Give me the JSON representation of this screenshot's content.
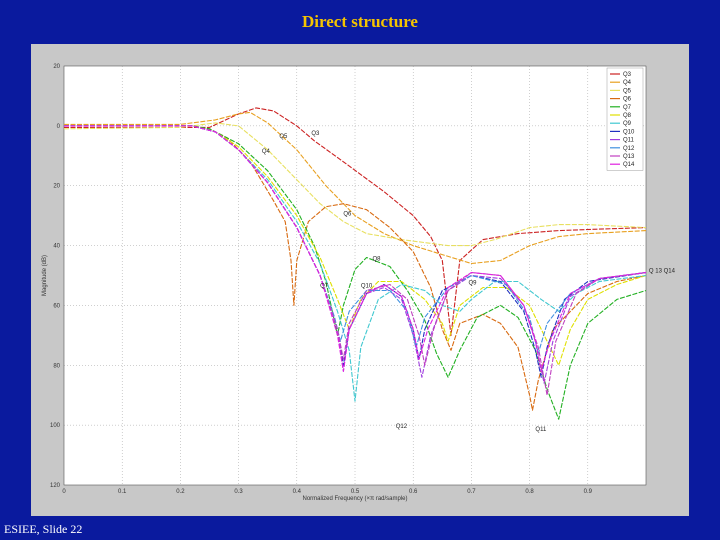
{
  "slide": {
    "title": "Direct structure",
    "footer": "ESIEE, Slide 22"
  },
  "chart_data": {
    "type": "line",
    "title": "",
    "xlabel": "Normalized Frequency (×π rad/sample)",
    "ylabel": "Magnitude (dB)",
    "xlim": [
      0,
      1
    ],
    "ylim_display": [
      20,
      -120
    ],
    "x_ticks": [
      0,
      0.1,
      0.2,
      0.3,
      0.4,
      0.5,
      0.6,
      0.7,
      0.8,
      0.9
    ],
    "x_tick_labels": [
      "0",
      "0.1",
      "0.2",
      "0.3",
      "0.4",
      "0.5",
      "0.6",
      "0.7",
      "0.8",
      "0.9"
    ],
    "y_ticks": [
      20,
      0,
      -20,
      -40,
      -60,
      -80,
      -100,
      -120
    ],
    "y_tick_labels": [
      "20",
      "0",
      "20",
      "40",
      "60",
      "80",
      "100",
      "120"
    ],
    "grid": true,
    "legend_position": "top-right",
    "series": [
      {
        "name": "Q3",
        "color": "#cc2222",
        "points": [
          [
            0,
            -0.5
          ],
          [
            0.25,
            -0.5
          ],
          [
            0.3,
            4
          ],
          [
            0.33,
            6
          ],
          [
            0.36,
            5
          ],
          [
            0.4,
            0
          ],
          [
            0.43,
            -5
          ],
          [
            0.48,
            -12
          ],
          [
            0.55,
            -22
          ],
          [
            0.6,
            -30
          ],
          [
            0.63,
            -37
          ],
          [
            0.65,
            -45
          ],
          [
            0.665,
            -70
          ],
          [
            0.68,
            -45
          ],
          [
            0.72,
            -38
          ],
          [
            0.78,
            -36
          ],
          [
            0.85,
            -35
          ],
          [
            0.92,
            -34.5
          ],
          [
            1,
            -34
          ]
        ]
      },
      {
        "name": "Q4",
        "color": "#e8a020",
        "points": [
          [
            0,
            0.5
          ],
          [
            0.2,
            0.5
          ],
          [
            0.26,
            2
          ],
          [
            0.3,
            4
          ],
          [
            0.32,
            4.5
          ],
          [
            0.35,
            1
          ],
          [
            0.4,
            -8
          ],
          [
            0.45,
            -20
          ],
          [
            0.5,
            -30
          ],
          [
            0.55,
            -36
          ],
          [
            0.6,
            -40
          ],
          [
            0.65,
            -43
          ],
          [
            0.7,
            -46
          ],
          [
            0.75,
            -45
          ],
          [
            0.8,
            -40
          ],
          [
            0.85,
            -37
          ],
          [
            0.9,
            -36
          ],
          [
            1,
            -35
          ]
        ]
      },
      {
        "name": "Q5",
        "color": "#e8e060",
        "points": [
          [
            0,
            -1
          ],
          [
            0.2,
            -0.5
          ],
          [
            0.26,
            1
          ],
          [
            0.3,
            0
          ],
          [
            0.35,
            -8
          ],
          [
            0.4,
            -18
          ],
          [
            0.44,
            -26
          ],
          [
            0.48,
            -32
          ],
          [
            0.52,
            -36
          ],
          [
            0.58,
            -38
          ],
          [
            0.62,
            -39
          ],
          [
            0.66,
            -40
          ],
          [
            0.7,
            -40
          ],
          [
            0.74,
            -38
          ],
          [
            0.8,
            -34
          ],
          [
            0.85,
            -33
          ],
          [
            0.9,
            -33
          ],
          [
            1,
            -34
          ]
        ]
      },
      {
        "name": "Q6",
        "color": "#d86a10",
        "points": [
          [
            0,
            0
          ],
          [
            0.22,
            0
          ],
          [
            0.25,
            -1
          ],
          [
            0.28,
            -4
          ],
          [
            0.32,
            -12
          ],
          [
            0.36,
            -25
          ],
          [
            0.38,
            -32
          ],
          [
            0.39,
            -45
          ],
          [
            0.395,
            -60
          ],
          [
            0.4,
            -45
          ],
          [
            0.42,
            -32
          ],
          [
            0.45,
            -27
          ],
          [
            0.48,
            -26
          ],
          [
            0.52,
            -28
          ],
          [
            0.56,
            -34
          ],
          [
            0.6,
            -42
          ],
          [
            0.63,
            -54
          ],
          [
            0.65,
            -68
          ],
          [
            0.665,
            -75
          ],
          [
            0.68,
            -66
          ],
          [
            0.72,
            -63
          ],
          [
            0.75,
            -66
          ],
          [
            0.78,
            -74
          ],
          [
            0.8,
            -90
          ],
          [
            0.805,
            -95
          ],
          [
            0.815,
            -85
          ],
          [
            0.84,
            -68
          ],
          [
            0.9,
            -56
          ],
          [
            0.95,
            -52
          ],
          [
            1,
            -50
          ]
        ]
      },
      {
        "name": "Q7",
        "color": "#22b022",
        "points": [
          [
            0,
            0
          ],
          [
            0.22,
            0
          ],
          [
            0.25,
            -1
          ],
          [
            0.3,
            -6
          ],
          [
            0.35,
            -15
          ],
          [
            0.4,
            -28
          ],
          [
            0.43,
            -40
          ],
          [
            0.45,
            -52
          ],
          [
            0.47,
            -70
          ],
          [
            0.48,
            -60
          ],
          [
            0.5,
            -48
          ],
          [
            0.52,
            -44
          ],
          [
            0.56,
            -47
          ],
          [
            0.59,
            -55
          ],
          [
            0.62,
            -65
          ],
          [
            0.64,
            -76
          ],
          [
            0.66,
            -84
          ],
          [
            0.68,
            -75
          ],
          [
            0.71,
            -64
          ],
          [
            0.75,
            -60
          ],
          [
            0.78,
            -64
          ],
          [
            0.81,
            -75
          ],
          [
            0.83,
            -88
          ],
          [
            0.85,
            -98
          ],
          [
            0.87,
            -80
          ],
          [
            0.9,
            -66
          ],
          [
            0.95,
            -58
          ],
          [
            1,
            -55
          ]
        ]
      },
      {
        "name": "Q8",
        "color": "#e0e000",
        "points": [
          [
            0,
            0
          ],
          [
            0.22,
            0
          ],
          [
            0.26,
            -2
          ],
          [
            0.3,
            -7
          ],
          [
            0.35,
            -17
          ],
          [
            0.4,
            -30
          ],
          [
            0.44,
            -44
          ],
          [
            0.47,
            -58
          ],
          [
            0.49,
            -68
          ],
          [
            0.51,
            -58
          ],
          [
            0.54,
            -52
          ],
          [
            0.58,
            -52
          ],
          [
            0.62,
            -58
          ],
          [
            0.65,
            -66
          ],
          [
            0.66,
            -72
          ],
          [
            0.68,
            -60
          ],
          [
            0.72,
            -54
          ],
          [
            0.76,
            -54
          ],
          [
            0.8,
            -60
          ],
          [
            0.83,
            -72
          ],
          [
            0.85,
            -80
          ],
          [
            0.87,
            -68
          ],
          [
            0.9,
            -58
          ],
          [
            0.95,
            -53
          ],
          [
            1,
            -50
          ]
        ]
      },
      {
        "name": "Q9",
        "color": "#40c8d0",
        "points": [
          [
            0,
            0
          ],
          [
            0.22,
            0
          ],
          [
            0.26,
            -2
          ],
          [
            0.3,
            -8
          ],
          [
            0.35,
            -18
          ],
          [
            0.4,
            -32
          ],
          [
            0.44,
            -46
          ],
          [
            0.47,
            -62
          ],
          [
            0.49,
            -75
          ],
          [
            0.5,
            -92
          ],
          [
            0.51,
            -74
          ],
          [
            0.54,
            -58
          ],
          [
            0.58,
            -53
          ],
          [
            0.62,
            -55
          ],
          [
            0.65,
            -60
          ],
          [
            0.68,
            -62
          ],
          [
            0.7,
            -58
          ],
          [
            0.74,
            -52
          ],
          [
            0.78,
            -52
          ],
          [
            0.82,
            -58
          ],
          [
            0.85,
            -62
          ],
          [
            0.88,
            -56
          ],
          [
            0.92,
            -52
          ],
          [
            1,
            -50
          ]
        ]
      },
      {
        "name": "Q10",
        "color": "#2030c0",
        "points": [
          [
            0,
            0
          ],
          [
            0.22,
            0
          ],
          [
            0.26,
            -2
          ],
          [
            0.3,
            -8
          ],
          [
            0.35,
            -19
          ],
          [
            0.4,
            -34
          ],
          [
            0.44,
            -50
          ],
          [
            0.47,
            -68
          ],
          [
            0.48,
            -80
          ],
          [
            0.49,
            -68
          ],
          [
            0.52,
            -56
          ],
          [
            0.55,
            -53
          ],
          [
            0.58,
            -57
          ],
          [
            0.6,
            -68
          ],
          [
            0.61,
            -78
          ],
          [
            0.62,
            -68
          ],
          [
            0.65,
            -55
          ],
          [
            0.7,
            -50
          ],
          [
            0.75,
            -52
          ],
          [
            0.79,
            -62
          ],
          [
            0.81,
            -75
          ],
          [
            0.82,
            -84
          ],
          [
            0.83,
            -74
          ],
          [
            0.86,
            -58
          ],
          [
            0.9,
            -52
          ],
          [
            1,
            -49
          ]
        ]
      },
      {
        "name": "Q11",
        "color": "#a040e0",
        "points": [
          [
            0,
            0
          ],
          [
            0.22,
            0
          ],
          [
            0.26,
            -2
          ],
          [
            0.3,
            -8
          ],
          [
            0.35,
            -19
          ],
          [
            0.4,
            -34
          ],
          [
            0.44,
            -50
          ],
          [
            0.47,
            -68
          ],
          [
            0.48,
            -82
          ],
          [
            0.49,
            -68
          ],
          [
            0.52,
            -56
          ],
          [
            0.55,
            -54
          ],
          [
            0.58,
            -58
          ],
          [
            0.6,
            -70
          ],
          [
            0.615,
            -84
          ],
          [
            0.63,
            -70
          ],
          [
            0.66,
            -55
          ],
          [
            0.7,
            -50
          ],
          [
            0.75,
            -51
          ],
          [
            0.79,
            -60
          ],
          [
            0.81,
            -72
          ],
          [
            0.825,
            -86
          ],
          [
            0.84,
            -72
          ],
          [
            0.87,
            -57
          ],
          [
            0.92,
            -51
          ],
          [
            1,
            -49
          ]
        ]
      },
      {
        "name": "Q12",
        "color": "#4090e0",
        "points": [
          [
            0,
            0
          ],
          [
            0.22,
            0
          ],
          [
            0.26,
            -2
          ],
          [
            0.3,
            -8
          ],
          [
            0.35,
            -19
          ],
          [
            0.4,
            -34
          ],
          [
            0.44,
            -50
          ],
          [
            0.465,
            -64
          ],
          [
            0.475,
            -72
          ],
          [
            0.49,
            -62
          ],
          [
            0.52,
            -55
          ],
          [
            0.56,
            -55
          ],
          [
            0.59,
            -62
          ],
          [
            0.605,
            -74
          ],
          [
            0.62,
            -64
          ],
          [
            0.66,
            -54
          ],
          [
            0.7,
            -50
          ],
          [
            0.76,
            -53
          ],
          [
            0.8,
            -64
          ],
          [
            0.815,
            -76
          ],
          [
            0.83,
            -66
          ],
          [
            0.87,
            -56
          ],
          [
            0.92,
            -51
          ],
          [
            1,
            -49
          ]
        ]
      },
      {
        "name": "Q13",
        "color": "#c040c0",
        "points": [
          [
            0,
            0
          ],
          [
            0.22,
            0
          ],
          [
            0.26,
            -2
          ],
          [
            0.3,
            -8
          ],
          [
            0.35,
            -19
          ],
          [
            0.4,
            -34
          ],
          [
            0.44,
            -50
          ],
          [
            0.47,
            -68
          ],
          [
            0.48,
            -78
          ],
          [
            0.49,
            -66
          ],
          [
            0.52,
            -55
          ],
          [
            0.56,
            -53
          ],
          [
            0.59,
            -58
          ],
          [
            0.61,
            -70
          ],
          [
            0.62,
            -80
          ],
          [
            0.635,
            -68
          ],
          [
            0.66,
            -55
          ],
          [
            0.7,
            -49
          ],
          [
            0.75,
            -50
          ],
          [
            0.79,
            -60
          ],
          [
            0.815,
            -74
          ],
          [
            0.83,
            -90
          ],
          [
            0.845,
            -72
          ],
          [
            0.88,
            -56
          ],
          [
            0.92,
            -51
          ],
          [
            1,
            -49
          ]
        ]
      },
      {
        "name": "Q14",
        "color": "#e020e0",
        "points": [
          [
            0,
            0
          ],
          [
            0.22,
            0
          ],
          [
            0.26,
            -2
          ],
          [
            0.3,
            -8
          ],
          [
            0.35,
            -19
          ],
          [
            0.4,
            -34
          ],
          [
            0.44,
            -50
          ],
          [
            0.47,
            -70
          ],
          [
            0.48,
            -82
          ],
          [
            0.49,
            -68
          ],
          [
            0.52,
            -56
          ],
          [
            0.55,
            -53
          ],
          [
            0.58,
            -57
          ],
          [
            0.6,
            -68
          ],
          [
            0.61,
            -78
          ],
          [
            0.625,
            -68
          ],
          [
            0.66,
            -54
          ],
          [
            0.7,
            -49
          ],
          [
            0.75,
            -50
          ],
          [
            0.79,
            -60
          ],
          [
            0.81,
            -72
          ],
          [
            0.82,
            -82
          ],
          [
            0.835,
            -72
          ],
          [
            0.87,
            -56
          ],
          [
            0.92,
            -51
          ],
          [
            1,
            -49
          ]
        ]
      }
    ],
    "annotations": [
      {
        "text": "Q3",
        "x": 0.425,
        "y": -3
      },
      {
        "text": "Q5",
        "x": 0.37,
        "y": -4
      },
      {
        "text": "Q4",
        "x": 0.34,
        "y": -9
      },
      {
        "text": "Q6",
        "x": 0.48,
        "y": -30
      },
      {
        "text": "Q8",
        "x": 0.53,
        "y": -45
      },
      {
        "text": "Q7",
        "x": 0.44,
        "y": -54
      },
      {
        "text": "Q10",
        "x": 0.51,
        "y": -54
      },
      {
        "text": "Q9",
        "x": 0.695,
        "y": -53
      },
      {
        "text": "Q12",
        "x": 0.57,
        "y": -101
      },
      {
        "text": "Q11",
        "x": 0.81,
        "y": -102
      },
      {
        "text": "Q 13 Q14",
        "x": 1.005,
        "y": -49
      }
    ]
  }
}
